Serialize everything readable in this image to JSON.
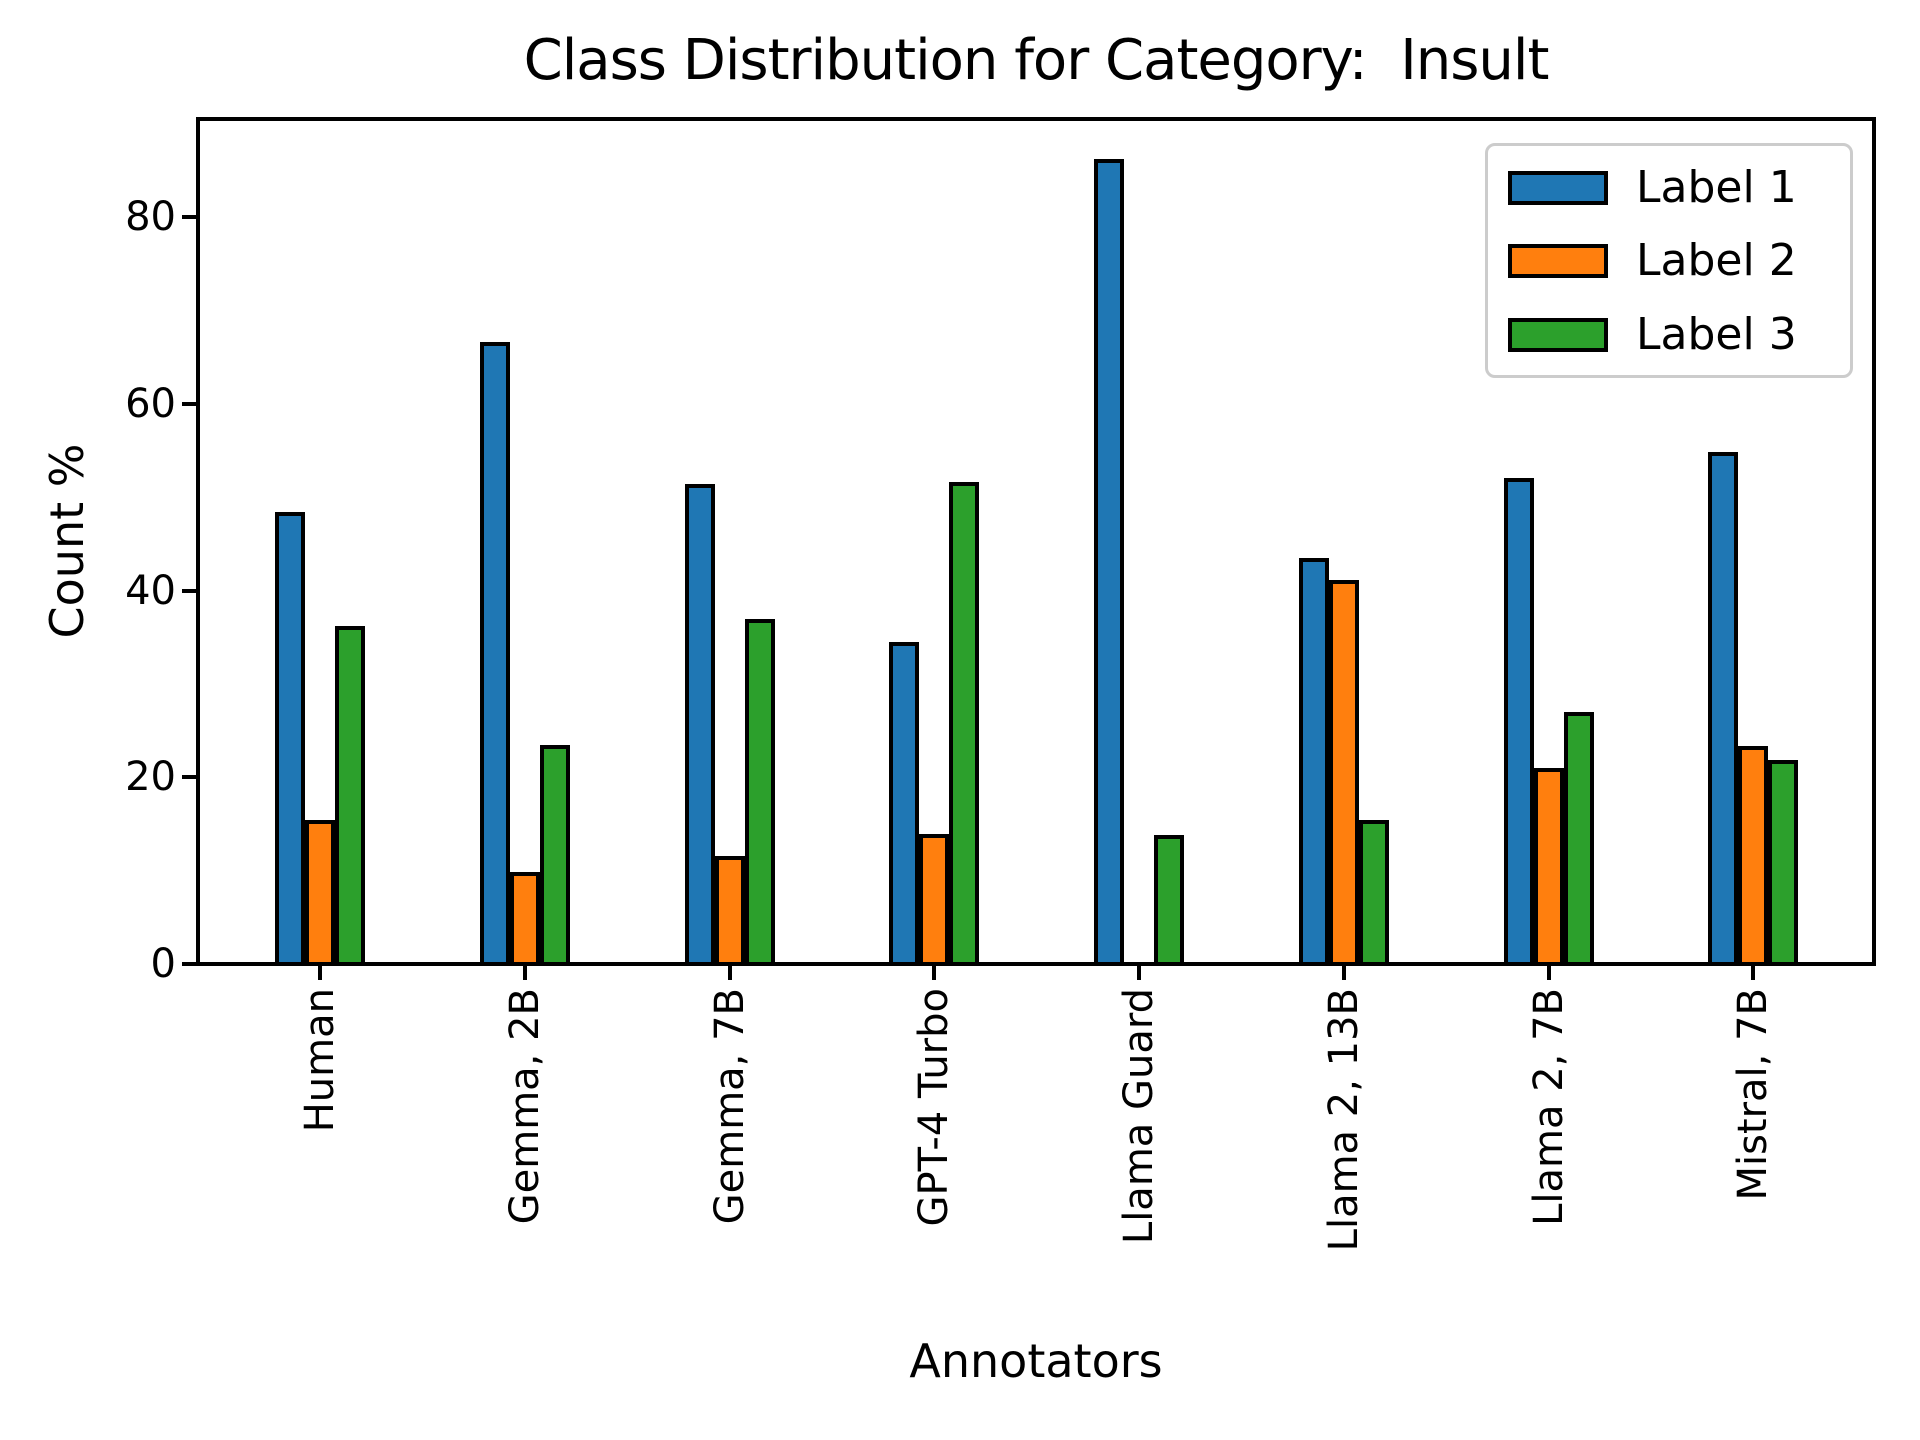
{
  "chart_data": {
    "type": "bar",
    "title": "Class Distribution for Category:  Insult",
    "xlabel": "Annotators",
    "ylabel": "Count %",
    "categories": [
      "Human",
      "Gemma, 2B",
      "Gemma, 7B",
      "GPT-4 Turbo",
      "Llama Guard",
      "Llama 2, 13B",
      "Llama 2, 7B",
      "Mistral, 7B"
    ],
    "series": [
      {
        "name": "Label 1",
        "color": "#1f77b4",
        "values": [
          48.4,
          66.6,
          51.4,
          34.5,
          86.2,
          43.5,
          52.0,
          54.8
        ]
      },
      {
        "name": "Label 2",
        "color": "#ff7f0e",
        "values": [
          15.4,
          9.9,
          11.6,
          13.9,
          0.0,
          41.1,
          21.0,
          23.3
        ]
      },
      {
        "name": "Label 3",
        "color": "#2ca02c",
        "values": [
          36.2,
          23.5,
          37.0,
          51.6,
          13.8,
          15.4,
          27.0,
          21.9
        ]
      }
    ],
    "yticks": [
      0,
      20,
      40,
      60,
      80
    ],
    "ylim": [
      0,
      90.5
    ],
    "grid": false,
    "legend_position": "upper right",
    "bar_edge_color": "#000000",
    "axis_color": "#000000"
  }
}
